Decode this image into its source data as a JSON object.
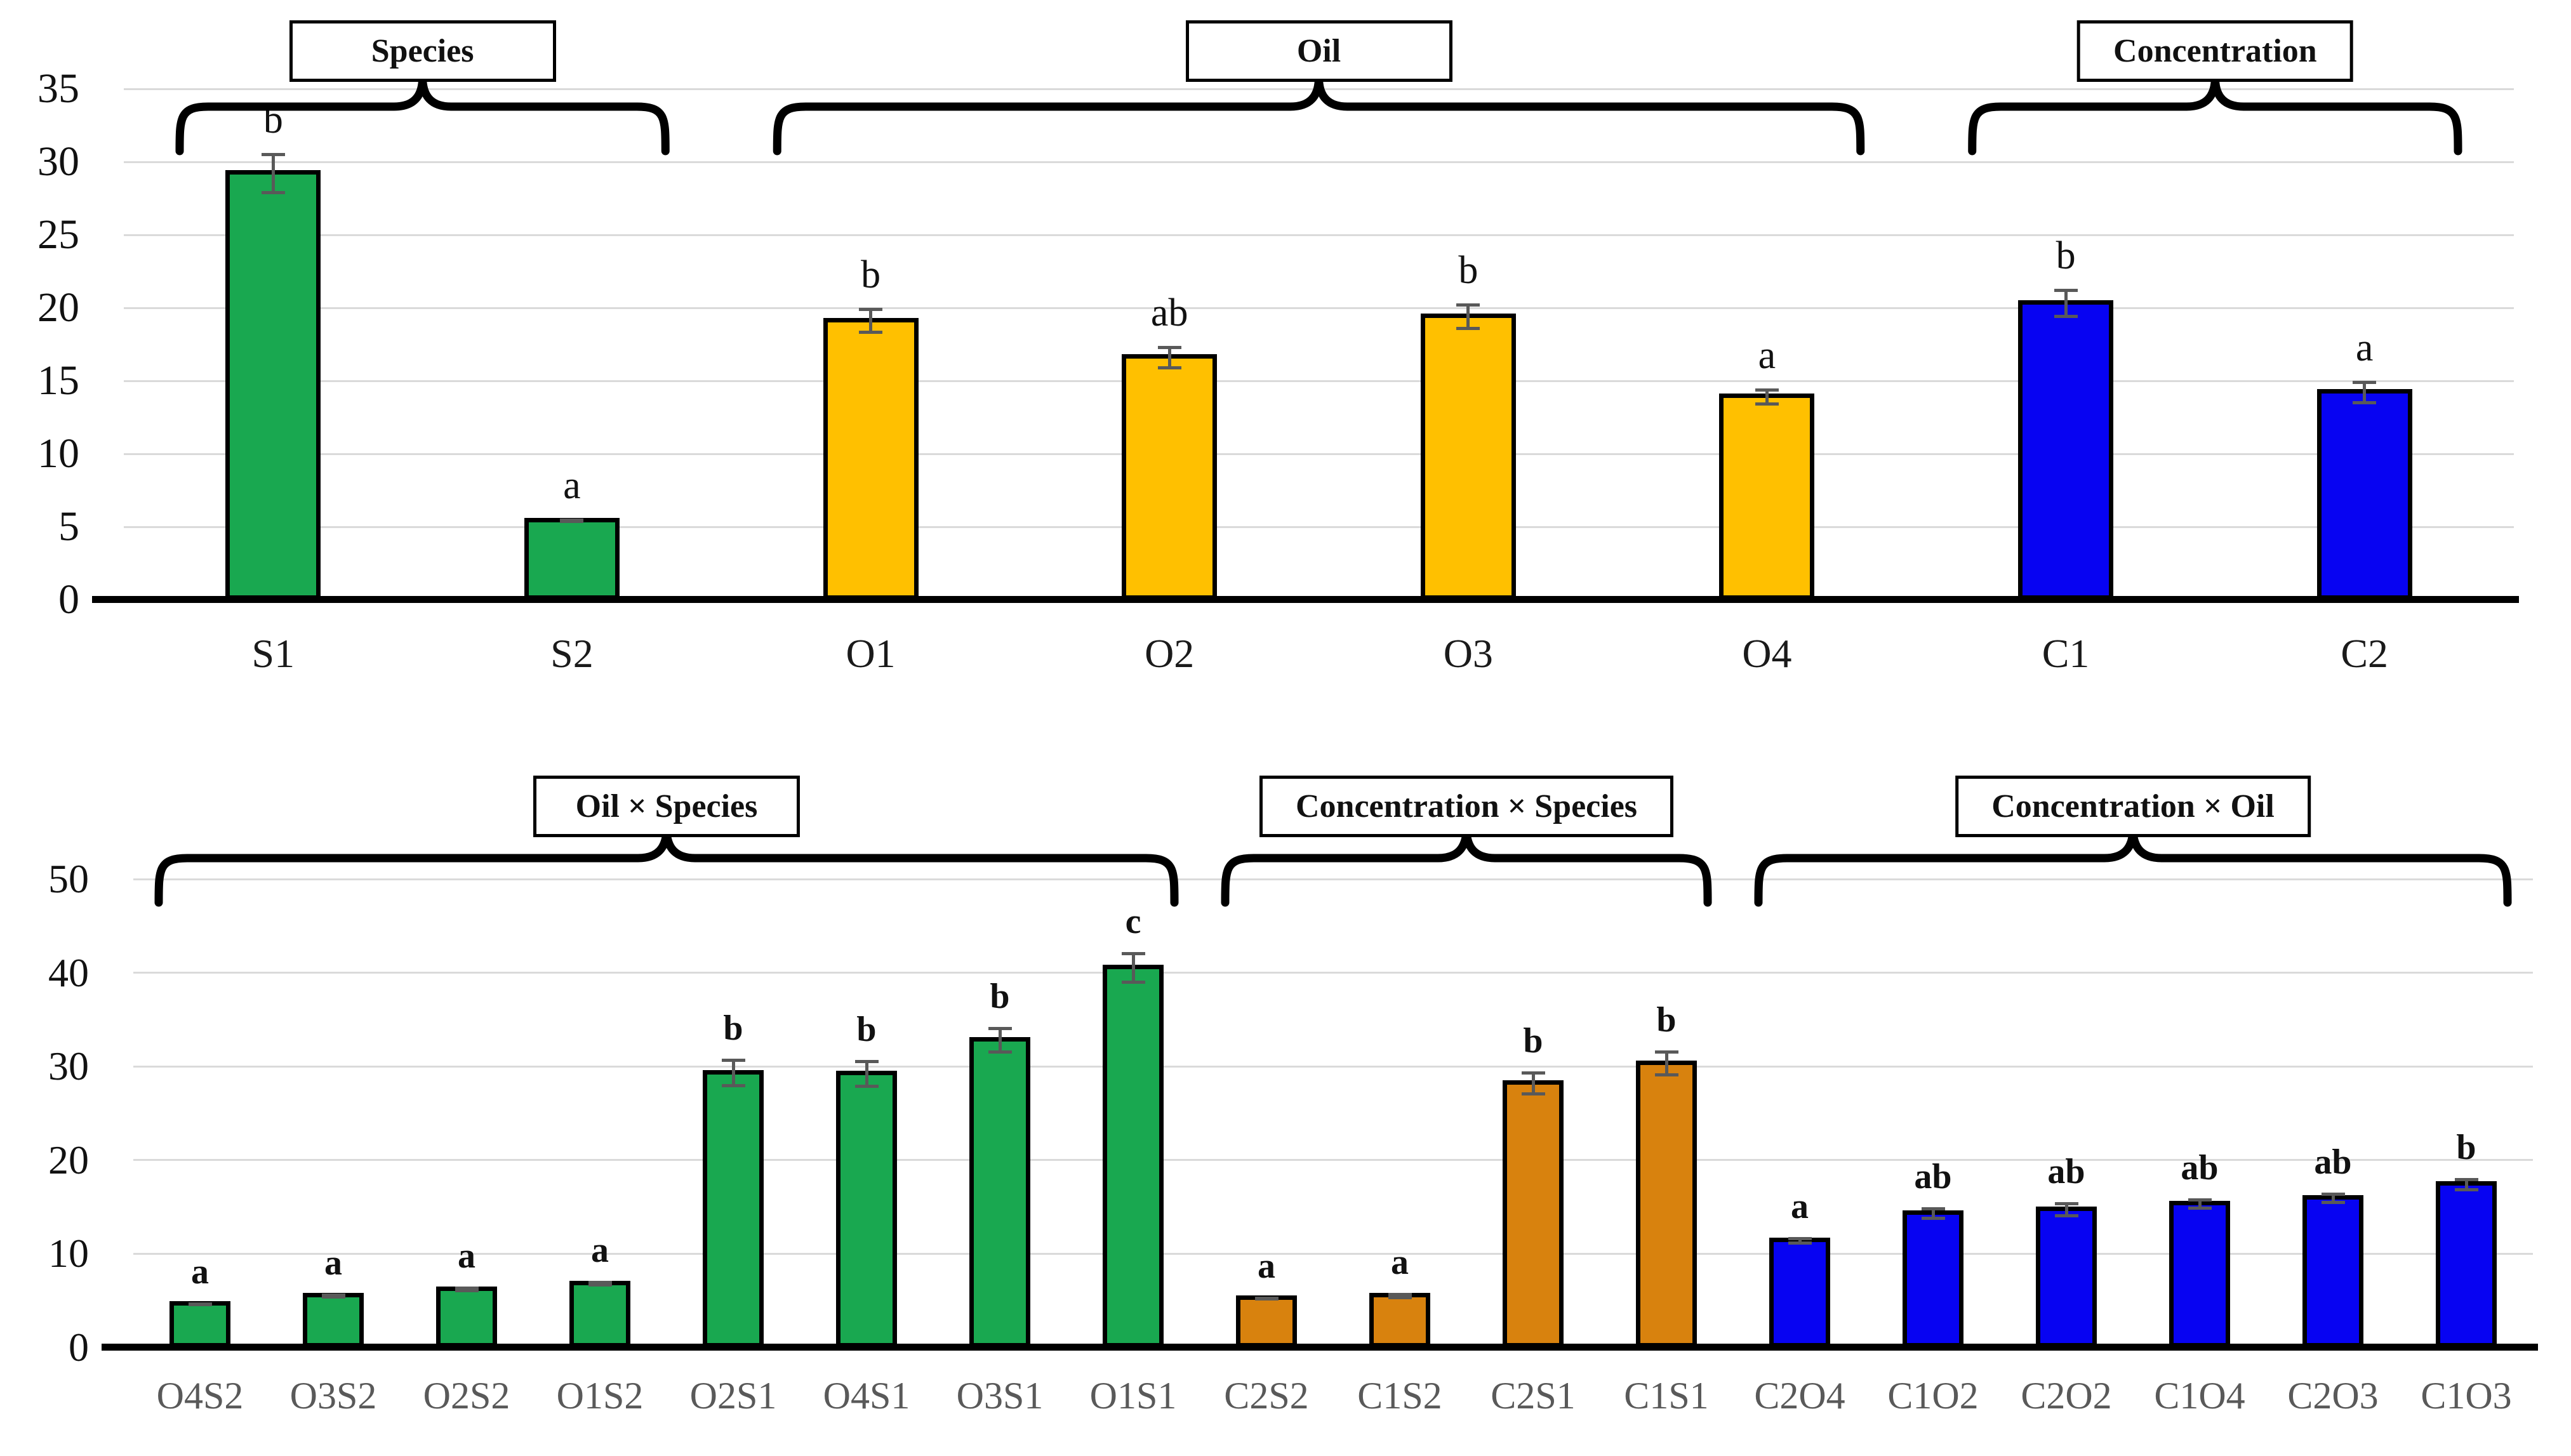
{
  "figure": {
    "kind": "two-panel bar chart with significance letters, error bars and group braces"
  },
  "colors": {
    "green": "#19A850",
    "yellow": "#FFC000",
    "blue": "#0703F2",
    "orange": "#D8820E",
    "gridline": "#DADADA",
    "error_bar": "#595959",
    "axis": "#000000",
    "xlabel_top": "#1A1A1A",
    "xlabel_bottom": "#595959"
  },
  "chart_data": [
    {
      "id": "top-panel",
      "type": "bar",
      "title": "",
      "xlabel": "",
      "ylabel": "",
      "ylim": [
        0,
        35
      ],
      "yticks": [
        0,
        5,
        10,
        15,
        20,
        25,
        30,
        35
      ],
      "grid": "horizontal",
      "legend": "none",
      "letters_bold": false,
      "groups": [
        {
          "label": "Species",
          "start": "S1",
          "end": "S2"
        },
        {
          "label": "Oil",
          "start": "O1",
          "end": "O4"
        },
        {
          "label": "Concentration",
          "start": "C1",
          "end": "C2"
        }
      ],
      "categories": [
        "S1",
        "S2",
        "O1",
        "O2",
        "O3",
        "O4",
        "C1",
        "C2"
      ],
      "bars": [
        {
          "label": "S1",
          "value": 29.2,
          "err": 1.4,
          "letter": "b",
          "color": "#19A850"
        },
        {
          "label": "S2",
          "value": 5.4,
          "err": 0.15,
          "letter": "a",
          "color": "#19A850"
        },
        {
          "label": "O1",
          "value": 19.1,
          "err": 0.9,
          "letter": "b",
          "color": "#FFC000"
        },
        {
          "label": "O2",
          "value": 16.6,
          "err": 0.8,
          "letter": "ab",
          "color": "#FFC000"
        },
        {
          "label": "O3",
          "value": 19.4,
          "err": 0.9,
          "letter": "b",
          "color": "#FFC000"
        },
        {
          "label": "O4",
          "value": 13.9,
          "err": 0.6,
          "letter": "a",
          "color": "#FFC000"
        },
        {
          "label": "C1",
          "value": 20.3,
          "err": 1.0,
          "letter": "b",
          "color": "#0703F2"
        },
        {
          "label": "C2",
          "value": 14.2,
          "err": 0.8,
          "letter": "a",
          "color": "#0703F2"
        }
      ]
    },
    {
      "id": "bottom-panel",
      "type": "bar",
      "title": "",
      "xlabel": "",
      "ylabel": "",
      "ylim": [
        0,
        50
      ],
      "yticks": [
        0,
        10,
        20,
        30,
        40,
        50
      ],
      "grid": "horizontal",
      "legend": "none",
      "letters_bold": true,
      "groups": [
        {
          "label": "Oil × Species",
          "start": "O4S2",
          "end": "O1S1"
        },
        {
          "label": "Concentration × Species",
          "start": "C2S2",
          "end": "C1S1"
        },
        {
          "label": "Concentration × Oil",
          "start": "C2O4",
          "end": "C1O3"
        }
      ],
      "categories": [
        "O4S2",
        "O3S2",
        "O2S2",
        "O1S2",
        "O2S1",
        "O4S1",
        "O3S1",
        "O1S1",
        "C2S2",
        "C1S2",
        "C2S1",
        "C1S1",
        "C2O4",
        "C1O2",
        "C2O2",
        "C1O4",
        "C2O3",
        "C1O3"
      ],
      "bars": [
        {
          "label": "O4S2",
          "value": 4.6,
          "err": 0.2,
          "letter": "a",
          "color": "#19A850"
        },
        {
          "label": "O3S2",
          "value": 5.5,
          "err": 0.25,
          "letter": "a",
          "color": "#19A850"
        },
        {
          "label": "O2S2",
          "value": 6.2,
          "err": 0.3,
          "letter": "a",
          "color": "#19A850"
        },
        {
          "label": "O1S2",
          "value": 6.8,
          "err": 0.3,
          "letter": "a",
          "color": "#19A850"
        },
        {
          "label": "O2S1",
          "value": 29.3,
          "err": 1.5,
          "letter": "b",
          "color": "#19A850"
        },
        {
          "label": "O4S1",
          "value": 29.2,
          "err": 1.5,
          "letter": "b",
          "color": "#19A850"
        },
        {
          "label": "O3S1",
          "value": 32.8,
          "err": 1.4,
          "letter": "b",
          "color": "#19A850"
        },
        {
          "label": "O1S1",
          "value": 40.5,
          "err": 1.7,
          "letter": "c",
          "color": "#19A850"
        },
        {
          "label": "C2S2",
          "value": 5.2,
          "err": 0.2,
          "letter": "a",
          "color": "#D8820E"
        },
        {
          "label": "C1S2",
          "value": 5.5,
          "err": 0.35,
          "letter": "a",
          "color": "#D8820E"
        },
        {
          "label": "C2S1",
          "value": 28.2,
          "err": 1.3,
          "letter": "b",
          "color": "#D8820E"
        },
        {
          "label": "C1S1",
          "value": 30.3,
          "err": 1.4,
          "letter": "b",
          "color": "#D8820E"
        },
        {
          "label": "C2O4",
          "value": 11.4,
          "err": 0.4,
          "letter": "a",
          "color": "#0703F2"
        },
        {
          "label": "C1O2",
          "value": 14.3,
          "err": 0.7,
          "letter": "ab",
          "color": "#0703F2"
        },
        {
          "label": "C2O2",
          "value": 14.7,
          "err": 0.8,
          "letter": "ab",
          "color": "#0703F2"
        },
        {
          "label": "C1O4",
          "value": 15.3,
          "err": 0.6,
          "letter": "ab",
          "color": "#0703F2"
        },
        {
          "label": "C2O3",
          "value": 15.9,
          "err": 0.6,
          "letter": "ab",
          "color": "#0703F2"
        },
        {
          "label": "C1O3",
          "value": 17.4,
          "err": 0.7,
          "letter": "b",
          "color": "#0703F2"
        }
      ]
    }
  ]
}
